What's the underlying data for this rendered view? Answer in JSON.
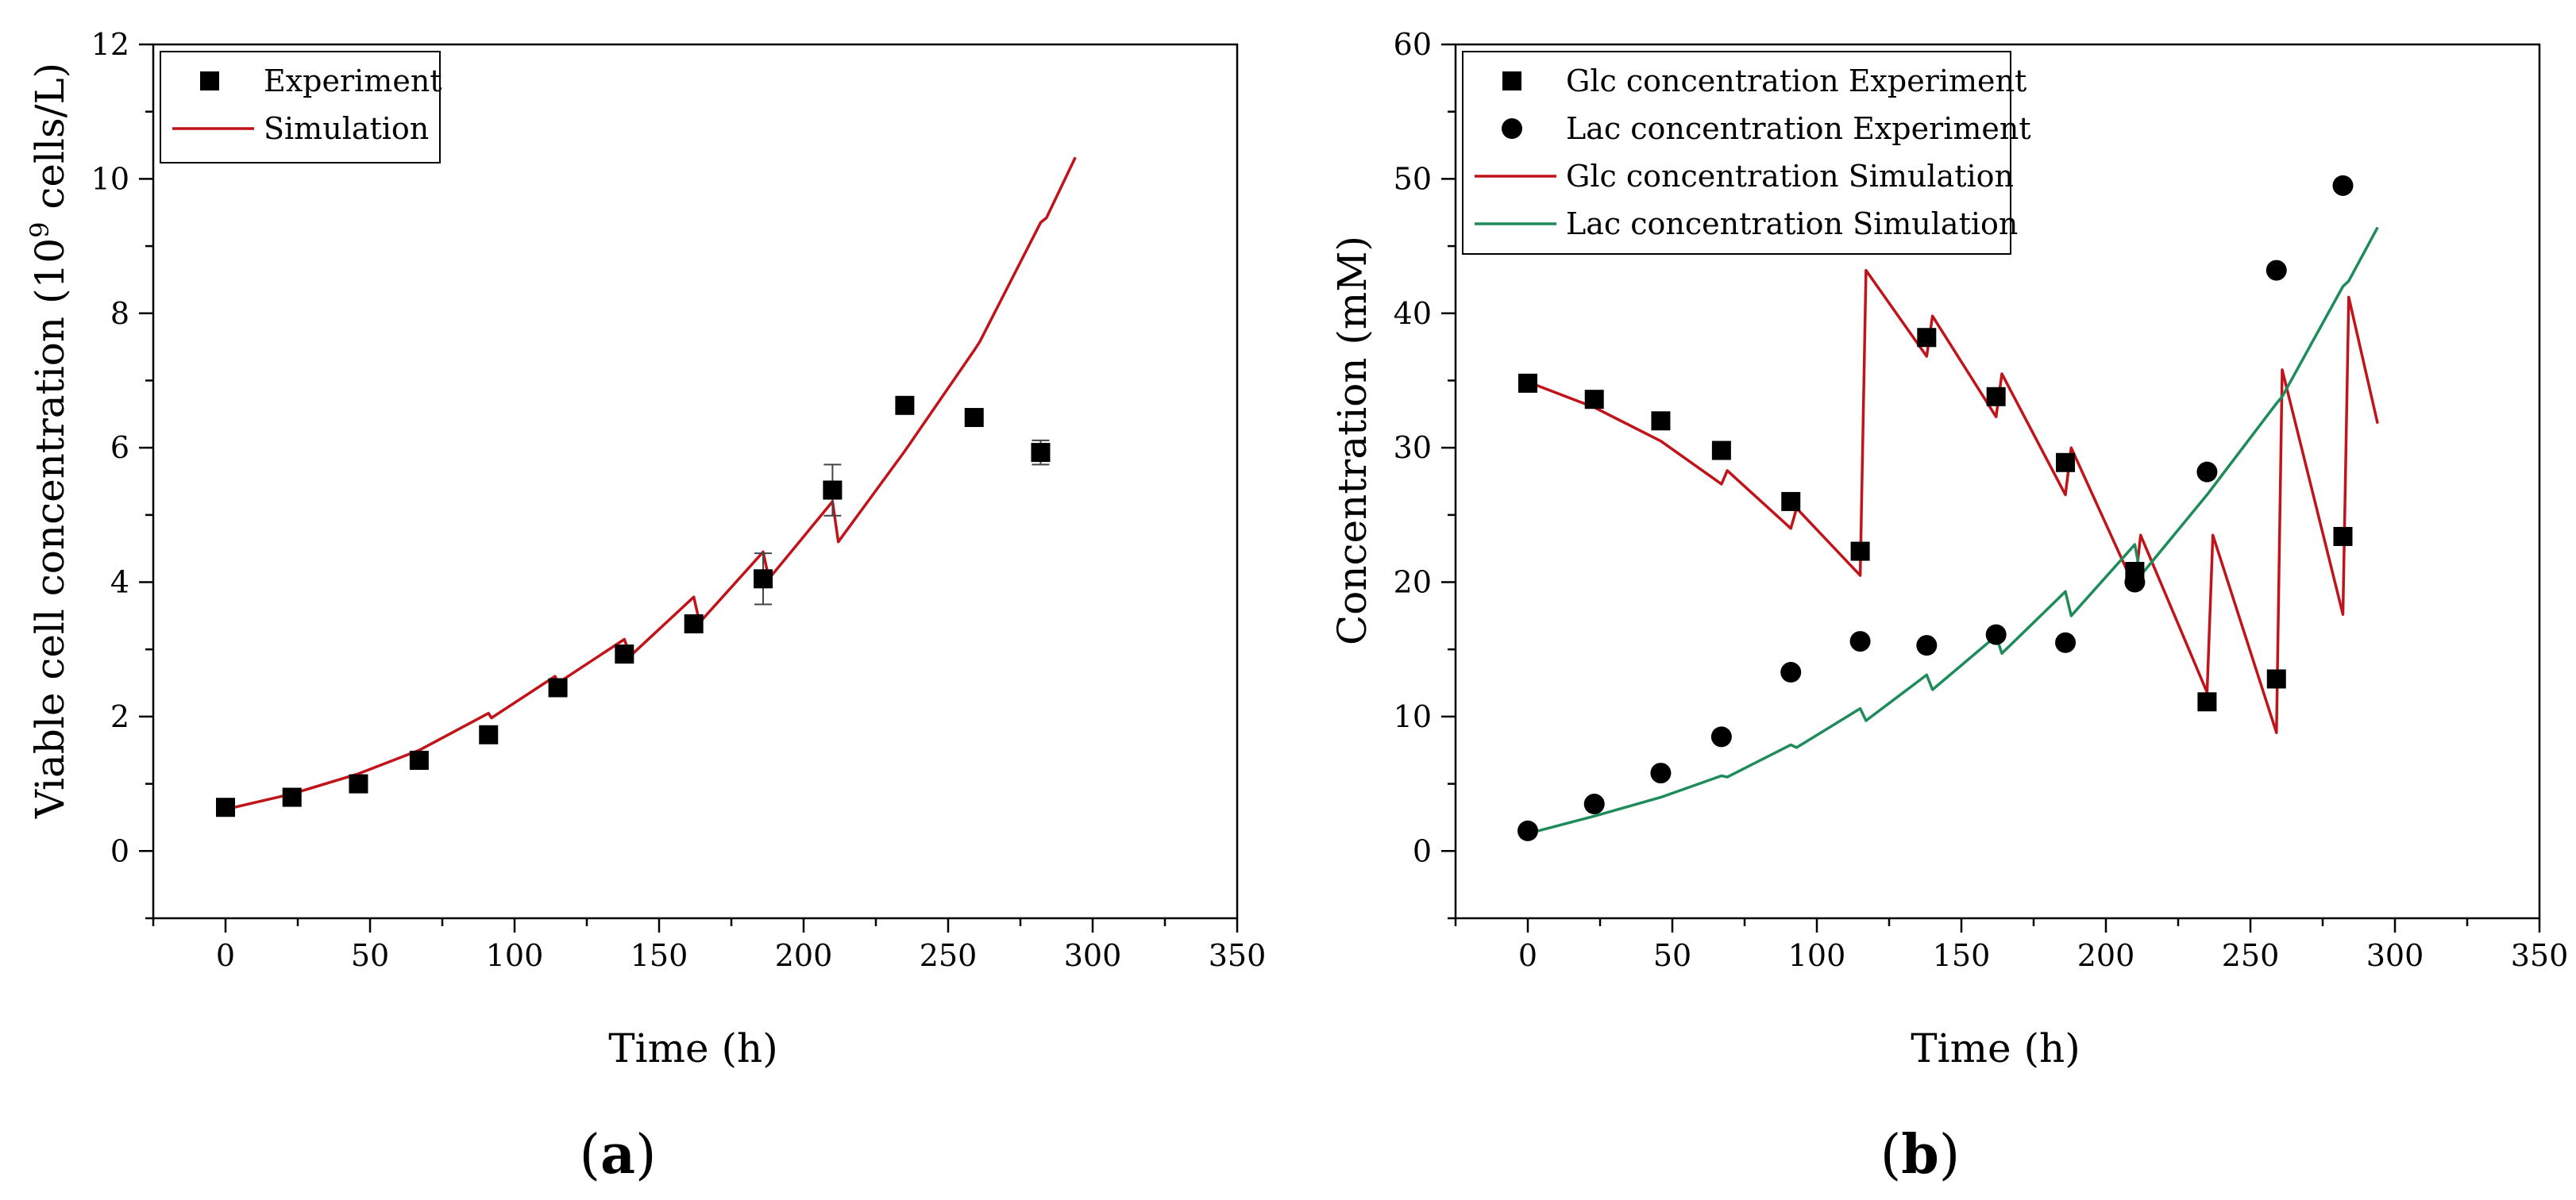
{
  "figure": {
    "panels": [
      {
        "label_open": "(",
        "label_letter": "a",
        "label_close": ")"
      },
      {
        "label_open": "(",
        "label_letter": "b",
        "label_close": ")"
      }
    ]
  },
  "chart_data": [
    {
      "type": "scatter",
      "panel": "a",
      "title": "",
      "xlabel": "Time (h)",
      "ylabel": "Viable cell concentration (10⁹ cells/L)",
      "ylabel_parts": {
        "pre": "Viable cell concentration (10",
        "sup": "9",
        "post": " cells/L)"
      },
      "xlim": [
        -25,
        350
      ],
      "ylim": [
        -1,
        12
      ],
      "xticks": [
        0,
        50,
        100,
        150,
        200,
        250,
        300,
        350
      ],
      "xtick_labels": [
        "0",
        "50",
        "100",
        "150",
        "200",
        "250",
        "300",
        "350"
      ],
      "yticks": [
        0,
        2,
        4,
        6,
        8,
        10,
        12
      ],
      "ytick_labels": [
        "0",
        "2",
        "4",
        "6",
        "8",
        "10",
        "12"
      ],
      "grid": false,
      "legend_position": "top-left",
      "series": [
        {
          "name": "Experiment",
          "kind": "markers",
          "marker": "square",
          "color": "#000000",
          "points": [
            {
              "x": 0,
              "y": 0.65,
              "err": 0.06
            },
            {
              "x": 23,
              "y": 0.8,
              "err": 0.05
            },
            {
              "x": 46,
              "y": 1.0,
              "err": 0.05
            },
            {
              "x": 67,
              "y": 1.35,
              "err": 0.05
            },
            {
              "x": 91,
              "y": 1.73,
              "err": 0.05
            },
            {
              "x": 115,
              "y": 2.43,
              "err": 0.1
            },
            {
              "x": 138,
              "y": 2.93,
              "err": 0.08
            },
            {
              "x": 162,
              "y": 3.38,
              "err": 0.08
            },
            {
              "x": 186,
              "y": 4.05,
              "err": 0.38
            },
            {
              "x": 210,
              "y": 5.37,
              "err": 0.38
            },
            {
              "x": 235,
              "y": 6.63,
              "err": 0.1
            },
            {
              "x": 259,
              "y": 6.45,
              "err": 0.12
            },
            {
              "x": 282,
              "y": 5.93,
              "err": 0.18
            }
          ]
        },
        {
          "name": "Simulation",
          "kind": "line",
          "color": "#c0141a",
          "points": [
            {
              "x": 0,
              "y": 0.62
            },
            {
              "x": 23,
              "y": 0.85
            },
            {
              "x": 46,
              "y": 1.15
            },
            {
              "x": 67,
              "y": 1.5
            },
            {
              "x": 91,
              "y": 2.05
            },
            {
              "x": 92,
              "y": 1.98
            },
            {
              "x": 114,
              "y": 2.6
            },
            {
              "x": 115,
              "y": 2.5
            },
            {
              "x": 138,
              "y": 3.15
            },
            {
              "x": 140,
              "y": 2.9
            },
            {
              "x": 162,
              "y": 3.78
            },
            {
              "x": 164,
              "y": 3.4
            },
            {
              "x": 186,
              "y": 4.45
            },
            {
              "x": 188,
              "y": 4.05
            },
            {
              "x": 210,
              "y": 5.2
            },
            {
              "x": 212,
              "y": 4.6
            },
            {
              "x": 235,
              "y": 5.95
            },
            {
              "x": 259,
              "y": 7.45
            },
            {
              "x": 261,
              "y": 7.58
            },
            {
              "x": 282,
              "y": 9.35
            },
            {
              "x": 284,
              "y": 9.42
            },
            {
              "x": 294,
              "y": 10.32
            }
          ]
        }
      ]
    },
    {
      "type": "scatter",
      "panel": "b",
      "title": "",
      "xlabel": "Time (h)",
      "ylabel": "Concentration (mM)",
      "xlim": [
        -25,
        350
      ],
      "ylim": [
        -5,
        60
      ],
      "xticks": [
        0,
        50,
        100,
        150,
        200,
        250,
        300,
        350
      ],
      "xtick_labels": [
        "0",
        "50",
        "100",
        "150",
        "200",
        "250",
        "300",
        "350"
      ],
      "yticks": [
        0,
        10,
        20,
        30,
        40,
        50,
        60
      ],
      "ytick_labels": [
        "0",
        "10",
        "20",
        "30",
        "40",
        "50",
        "60"
      ],
      "grid": false,
      "legend_position": "top-left",
      "series": [
        {
          "name": "Glc concentration Experiment",
          "kind": "markers",
          "marker": "square",
          "color": "#000000",
          "points": [
            {
              "x": 0,
              "y": 34.8
            },
            {
              "x": 23,
              "y": 33.6
            },
            {
              "x": 46,
              "y": 32.0
            },
            {
              "x": 67,
              "y": 29.8
            },
            {
              "x": 91,
              "y": 26.0
            },
            {
              "x": 115,
              "y": 22.3
            },
            {
              "x": 138,
              "y": 38.2
            },
            {
              "x": 162,
              "y": 33.8
            },
            {
              "x": 186,
              "y": 28.9
            },
            {
              "x": 210,
              "y": 20.8
            },
            {
              "x": 235,
              "y": 11.1
            },
            {
              "x": 259,
              "y": 12.8
            },
            {
              "x": 282,
              "y": 23.4
            }
          ]
        },
        {
          "name": "Lac concentration Experiment",
          "kind": "markers",
          "marker": "circle",
          "color": "#000000",
          "points": [
            {
              "x": 0,
              "y": 1.5
            },
            {
              "x": 23,
              "y": 3.5
            },
            {
              "x": 46,
              "y": 5.8
            },
            {
              "x": 67,
              "y": 8.5
            },
            {
              "x": 91,
              "y": 13.3
            },
            {
              "x": 115,
              "y": 15.6
            },
            {
              "x": 138,
              "y": 15.3
            },
            {
              "x": 162,
              "y": 16.1
            },
            {
              "x": 186,
              "y": 15.5
            },
            {
              "x": 210,
              "y": 20.0
            },
            {
              "x": 235,
              "y": 28.2
            },
            {
              "x": 259,
              "y": 43.2
            },
            {
              "x": 282,
              "y": 49.5
            }
          ]
        },
        {
          "name": "Glc concentration Simulation",
          "kind": "line",
          "color": "#c0141a",
          "points": [
            {
              "x": 0,
              "y": 34.9
            },
            {
              "x": 23,
              "y": 33.0
            },
            {
              "x": 46,
              "y": 30.5
            },
            {
              "x": 67,
              "y": 27.3
            },
            {
              "x": 69,
              "y": 28.3
            },
            {
              "x": 91,
              "y": 24.0
            },
            {
              "x": 93,
              "y": 25.5
            },
            {
              "x": 115,
              "y": 20.5
            },
            {
              "x": 117,
              "y": 43.2
            },
            {
              "x": 138,
              "y": 36.8
            },
            {
              "x": 140,
              "y": 39.8
            },
            {
              "x": 162,
              "y": 32.3
            },
            {
              "x": 164,
              "y": 35.5
            },
            {
              "x": 186,
              "y": 26.5
            },
            {
              "x": 188,
              "y": 30.0
            },
            {
              "x": 210,
              "y": 19.6
            },
            {
              "x": 212,
              "y": 23.5
            },
            {
              "x": 235,
              "y": 11.8
            },
            {
              "x": 237,
              "y": 23.5
            },
            {
              "x": 259,
              "y": 8.8
            },
            {
              "x": 261,
              "y": 35.8
            },
            {
              "x": 282,
              "y": 17.6
            },
            {
              "x": 284,
              "y": 41.2
            },
            {
              "x": 294,
              "y": 31.8
            }
          ]
        },
        {
          "name": "Lac concentration Simulation",
          "kind": "line",
          "color": "#1e8c5a",
          "points": [
            {
              "x": 0,
              "y": 1.3
            },
            {
              "x": 23,
              "y": 2.6
            },
            {
              "x": 46,
              "y": 4.0
            },
            {
              "x": 67,
              "y": 5.6
            },
            {
              "x": 69,
              "y": 5.5
            },
            {
              "x": 91,
              "y": 7.9
            },
            {
              "x": 93,
              "y": 7.7
            },
            {
              "x": 115,
              "y": 10.6
            },
            {
              "x": 117,
              "y": 9.7
            },
            {
              "x": 138,
              "y": 13.1
            },
            {
              "x": 140,
              "y": 12.0
            },
            {
              "x": 162,
              "y": 16.0
            },
            {
              "x": 164,
              "y": 14.7
            },
            {
              "x": 186,
              "y": 19.3
            },
            {
              "x": 188,
              "y": 17.5
            },
            {
              "x": 210,
              "y": 22.8
            },
            {
              "x": 212,
              "y": 20.5
            },
            {
              "x": 235,
              "y": 26.5
            },
            {
              "x": 259,
              "y": 33.3
            },
            {
              "x": 261,
              "y": 33.8
            },
            {
              "x": 282,
              "y": 42.0
            },
            {
              "x": 284,
              "y": 42.4
            },
            {
              "x": 294,
              "y": 46.4
            }
          ]
        }
      ]
    }
  ]
}
